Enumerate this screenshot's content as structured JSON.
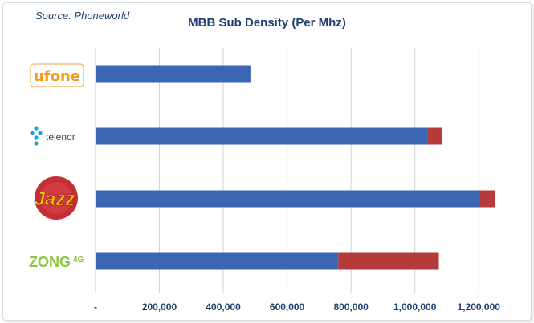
{
  "chart_data": {
    "type": "bar",
    "orientation": "horizontal",
    "stacked": true,
    "title": "MBB Sub Density (Per Mhz)",
    "source": "Source: Phoneworld",
    "categories": [
      "ufone",
      "telenor",
      "Jazz",
      "ZONG 4G"
    ],
    "series": [
      {
        "values": [
          485000,
          1040000,
          1200000,
          760000
        ],
        "color": "#3a66b3"
      },
      {
        "values": [
          0,
          45000,
          50000,
          315000
        ],
        "color": "#b53a3a"
      }
    ],
    "xlim": [
      0,
      1300000
    ],
    "xticks": [
      0,
      200000,
      400000,
      600000,
      800000,
      1000000,
      1200000
    ],
    "xtick_labels": [
      "-",
      "200,000",
      "400,000",
      "600,000",
      "800,000",
      "1,000,000",
      "1,200,000"
    ],
    "grid": true
  },
  "logos": {
    "ufone": "ufone",
    "telenor": "telenor",
    "jazz": "Jazz",
    "zong": "ZONG",
    "zong_suffix": "4G"
  }
}
